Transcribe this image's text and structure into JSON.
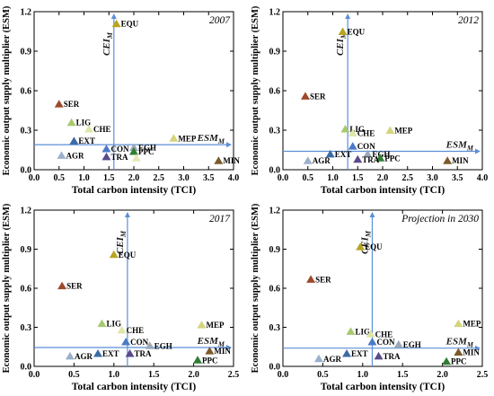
{
  "chart_data": [
    {
      "type": "scatter",
      "title": "2007",
      "xlabel": "Total carbon intensity (TCI)",
      "ylabel": "Economic output supply multiplier (ESM)",
      "xlim": [
        0,
        4.0
      ],
      "ylim": [
        0,
        1.2
      ],
      "xticks": [
        "0.0",
        "0.5",
        "1.0",
        "1.5",
        "2.0",
        "2.5",
        "3.0",
        "3.5",
        "4.0"
      ],
      "yticks": [
        "0.0",
        "0.3",
        "0.6",
        "0.9",
        "1.2"
      ],
      "ref_x": {
        "label": "CEI",
        "sub": "M",
        "value": 1.6
      },
      "ref_y": {
        "label": "ESM",
        "sub": "M",
        "value": 0.19
      },
      "points": [
        {
          "label": "EQU",
          "x": 1.65,
          "y": 1.11,
          "color": "#b8a420"
        },
        {
          "label": "SER",
          "x": 0.5,
          "y": 0.5,
          "color": "#9c4a2a"
        },
        {
          "label": "LIG",
          "x": 0.75,
          "y": 0.36,
          "color": "#a8c870"
        },
        {
          "label": "CHE",
          "x": 1.1,
          "y": 0.31,
          "color": "#dfe6a8"
        },
        {
          "label": "MEP",
          "x": 2.8,
          "y": 0.24,
          "color": "#d4d47c"
        },
        {
          "label": "EXT",
          "x": 0.8,
          "y": 0.22,
          "color": "#3c6aa6"
        },
        {
          "label": "CON",
          "x": 1.45,
          "y": 0.16,
          "color": "#4a7ac8"
        },
        {
          "label": "EGH",
          "x": 2.0,
          "y": 0.17,
          "color": "#9aa8b8"
        },
        {
          "label": "PPC",
          "x": 2.0,
          "y": 0.14,
          "color": "#2f7d32"
        },
        {
          "label": "AGR",
          "x": 0.55,
          "y": 0.11,
          "color": "#9ab0cc"
        },
        {
          "label": "TRA",
          "x": 1.45,
          "y": 0.1,
          "color": "#5a4a8a"
        },
        {
          "label": "",
          "x": 2.05,
          "y": 0.09,
          "color": "#e8e8b8"
        },
        {
          "label": "MIN",
          "x": 3.7,
          "y": 0.07,
          "color": "#7a5a28"
        }
      ]
    },
    {
      "type": "scatter",
      "title": "2012",
      "xlabel": "Total carbon intensity (TCI)",
      "ylabel": "Economic output supply multiplier (ESM)",
      "xlim": [
        0,
        4.0
      ],
      "ylim": [
        0,
        1.2
      ],
      "xticks": [
        "0.0",
        "0.5",
        "1.0",
        "1.5",
        "2.0",
        "2.5",
        "3.0",
        "3.5",
        "4.0"
      ],
      "yticks": [
        "0.0",
        "0.3",
        "0.6",
        "0.9",
        "1.2"
      ],
      "ref_x": {
        "label": "CEI",
        "sub": "M",
        "value": 1.3
      },
      "ref_y": {
        "label": "ESM",
        "sub": "M",
        "value": 0.14
      },
      "points": [
        {
          "label": "EQU",
          "x": 1.2,
          "y": 1.05,
          "color": "#b8a420"
        },
        {
          "label": "SER",
          "x": 0.45,
          "y": 0.56,
          "color": "#9c4a2a"
        },
        {
          "label": "LIG",
          "x": 1.25,
          "y": 0.31,
          "color": "#a8c870"
        },
        {
          "label": "CHE",
          "x": 1.4,
          "y": 0.28,
          "color": "#dfe6a8"
        },
        {
          "label": "MEP",
          "x": 2.15,
          "y": 0.3,
          "color": "#d4d47c"
        },
        {
          "label": "CON",
          "x": 1.4,
          "y": 0.18,
          "color": "#4a7ac8"
        },
        {
          "label": "EGH",
          "x": 1.7,
          "y": 0.12,
          "color": "#9aa8b8"
        },
        {
          "label": "EXT",
          "x": 0.95,
          "y": 0.12,
          "color": "#3c6aa6"
        },
        {
          "label": "PPC",
          "x": 1.95,
          "y": 0.09,
          "color": "#2f7d32"
        },
        {
          "label": "AGR",
          "x": 0.5,
          "y": 0.07,
          "color": "#9ab0cc"
        },
        {
          "label": "TRA",
          "x": 1.5,
          "y": 0.08,
          "color": "#5a4a8a"
        },
        {
          "label": "MIN",
          "x": 3.3,
          "y": 0.07,
          "color": "#7a5a28"
        }
      ]
    },
    {
      "type": "scatter",
      "title": "2017",
      "xlabel": "Total carbon intensity (TCI)",
      "ylabel": "Economic output supply multiplier (ESM)",
      "xlim": [
        0,
        2.5
      ],
      "ylim": [
        0,
        1.2
      ],
      "xticks": [
        "0.0",
        "0.5",
        "1.0",
        "1.5",
        "2.0",
        "2.5"
      ],
      "yticks": [
        "0.0",
        "0.3",
        "0.6",
        "0.9",
        "1.2"
      ],
      "ref_x": {
        "label": "CEI",
        "sub": "M",
        "value": 1.17
      },
      "ref_y": {
        "label": "ESM",
        "sub": "M",
        "value": 0.145
      },
      "points": [
        {
          "label": "EQU",
          "x": 1.0,
          "y": 0.86,
          "color": "#b8a420"
        },
        {
          "label": "SER",
          "x": 0.35,
          "y": 0.62,
          "color": "#9c4a2a"
        },
        {
          "label": "LIG",
          "x": 0.85,
          "y": 0.33,
          "color": "#a8c870"
        },
        {
          "label": "MEP",
          "x": 2.1,
          "y": 0.32,
          "color": "#d4d47c"
        },
        {
          "label": "CHE",
          "x": 1.1,
          "y": 0.28,
          "color": "#dfe6a8"
        },
        {
          "label": "CON",
          "x": 1.15,
          "y": 0.19,
          "color": "#4a7ac8"
        },
        {
          "label": "EGH",
          "x": 1.45,
          "y": 0.16,
          "color": "#9aa8b8"
        },
        {
          "label": "MIN",
          "x": 2.2,
          "y": 0.12,
          "color": "#7a5a28"
        },
        {
          "label": "EXT",
          "x": 0.8,
          "y": 0.1,
          "color": "#3c6aa6"
        },
        {
          "label": "TRA",
          "x": 1.2,
          "y": 0.1,
          "color": "#5a4a8a"
        },
        {
          "label": "AGR",
          "x": 0.45,
          "y": 0.08,
          "color": "#9ab0cc"
        },
        {
          "label": "PPC",
          "x": 2.05,
          "y": 0.05,
          "color": "#2f7d32"
        }
      ]
    },
    {
      "type": "scatter",
      "title": "Projection in 2030",
      "xlabel": "Total carbon intensity (TCI)",
      "ylabel": "Economic output supply multiplier (ESM)",
      "xlim": [
        0,
        2.5
      ],
      "ylim": [
        0,
        1.2
      ],
      "xticks": [
        "0.0",
        "0.5",
        "1.0",
        "1.5",
        "2.0",
        "2.5"
      ],
      "yticks": [
        "0.0",
        "0.3",
        "0.6",
        "0.9",
        "1.2"
      ],
      "ref_x": {
        "label": "CEI",
        "sub": "M",
        "value": 1.12
      },
      "ref_y": {
        "label": "ESM",
        "sub": "M",
        "value": 0.14
      },
      "points": [
        {
          "label": "EQU",
          "x": 0.97,
          "y": 0.92,
          "color": "#b8a420"
        },
        {
          "label": "SER",
          "x": 0.35,
          "y": 0.67,
          "color": "#9c4a2a"
        },
        {
          "label": "MEP",
          "x": 2.2,
          "y": 0.33,
          "color": "#d4d47c"
        },
        {
          "label": "LIG",
          "x": 0.85,
          "y": 0.27,
          "color": "#a8c870"
        },
        {
          "label": "CHE",
          "x": 1.1,
          "y": 0.25,
          "color": "#dfe6a8"
        },
        {
          "label": "CON",
          "x": 1.12,
          "y": 0.19,
          "color": "#4a7ac8"
        },
        {
          "label": "EGH",
          "x": 1.45,
          "y": 0.17,
          "color": "#9aa8b8"
        },
        {
          "label": "MIN",
          "x": 2.2,
          "y": 0.11,
          "color": "#7a5a28"
        },
        {
          "label": "EXT",
          "x": 0.8,
          "y": 0.1,
          "color": "#3c6aa6"
        },
        {
          "label": "TRA",
          "x": 1.2,
          "y": 0.08,
          "color": "#5a4a8a"
        },
        {
          "label": "AGR",
          "x": 0.45,
          "y": 0.06,
          "color": "#9ab0cc"
        },
        {
          "label": "PPC",
          "x": 2.05,
          "y": 0.04,
          "color": "#2f7d32"
        }
      ]
    }
  ],
  "colors": {
    "axis": "#000000",
    "ref_line": "#5b8fd6",
    "ref_label": "#1a1a1a"
  }
}
